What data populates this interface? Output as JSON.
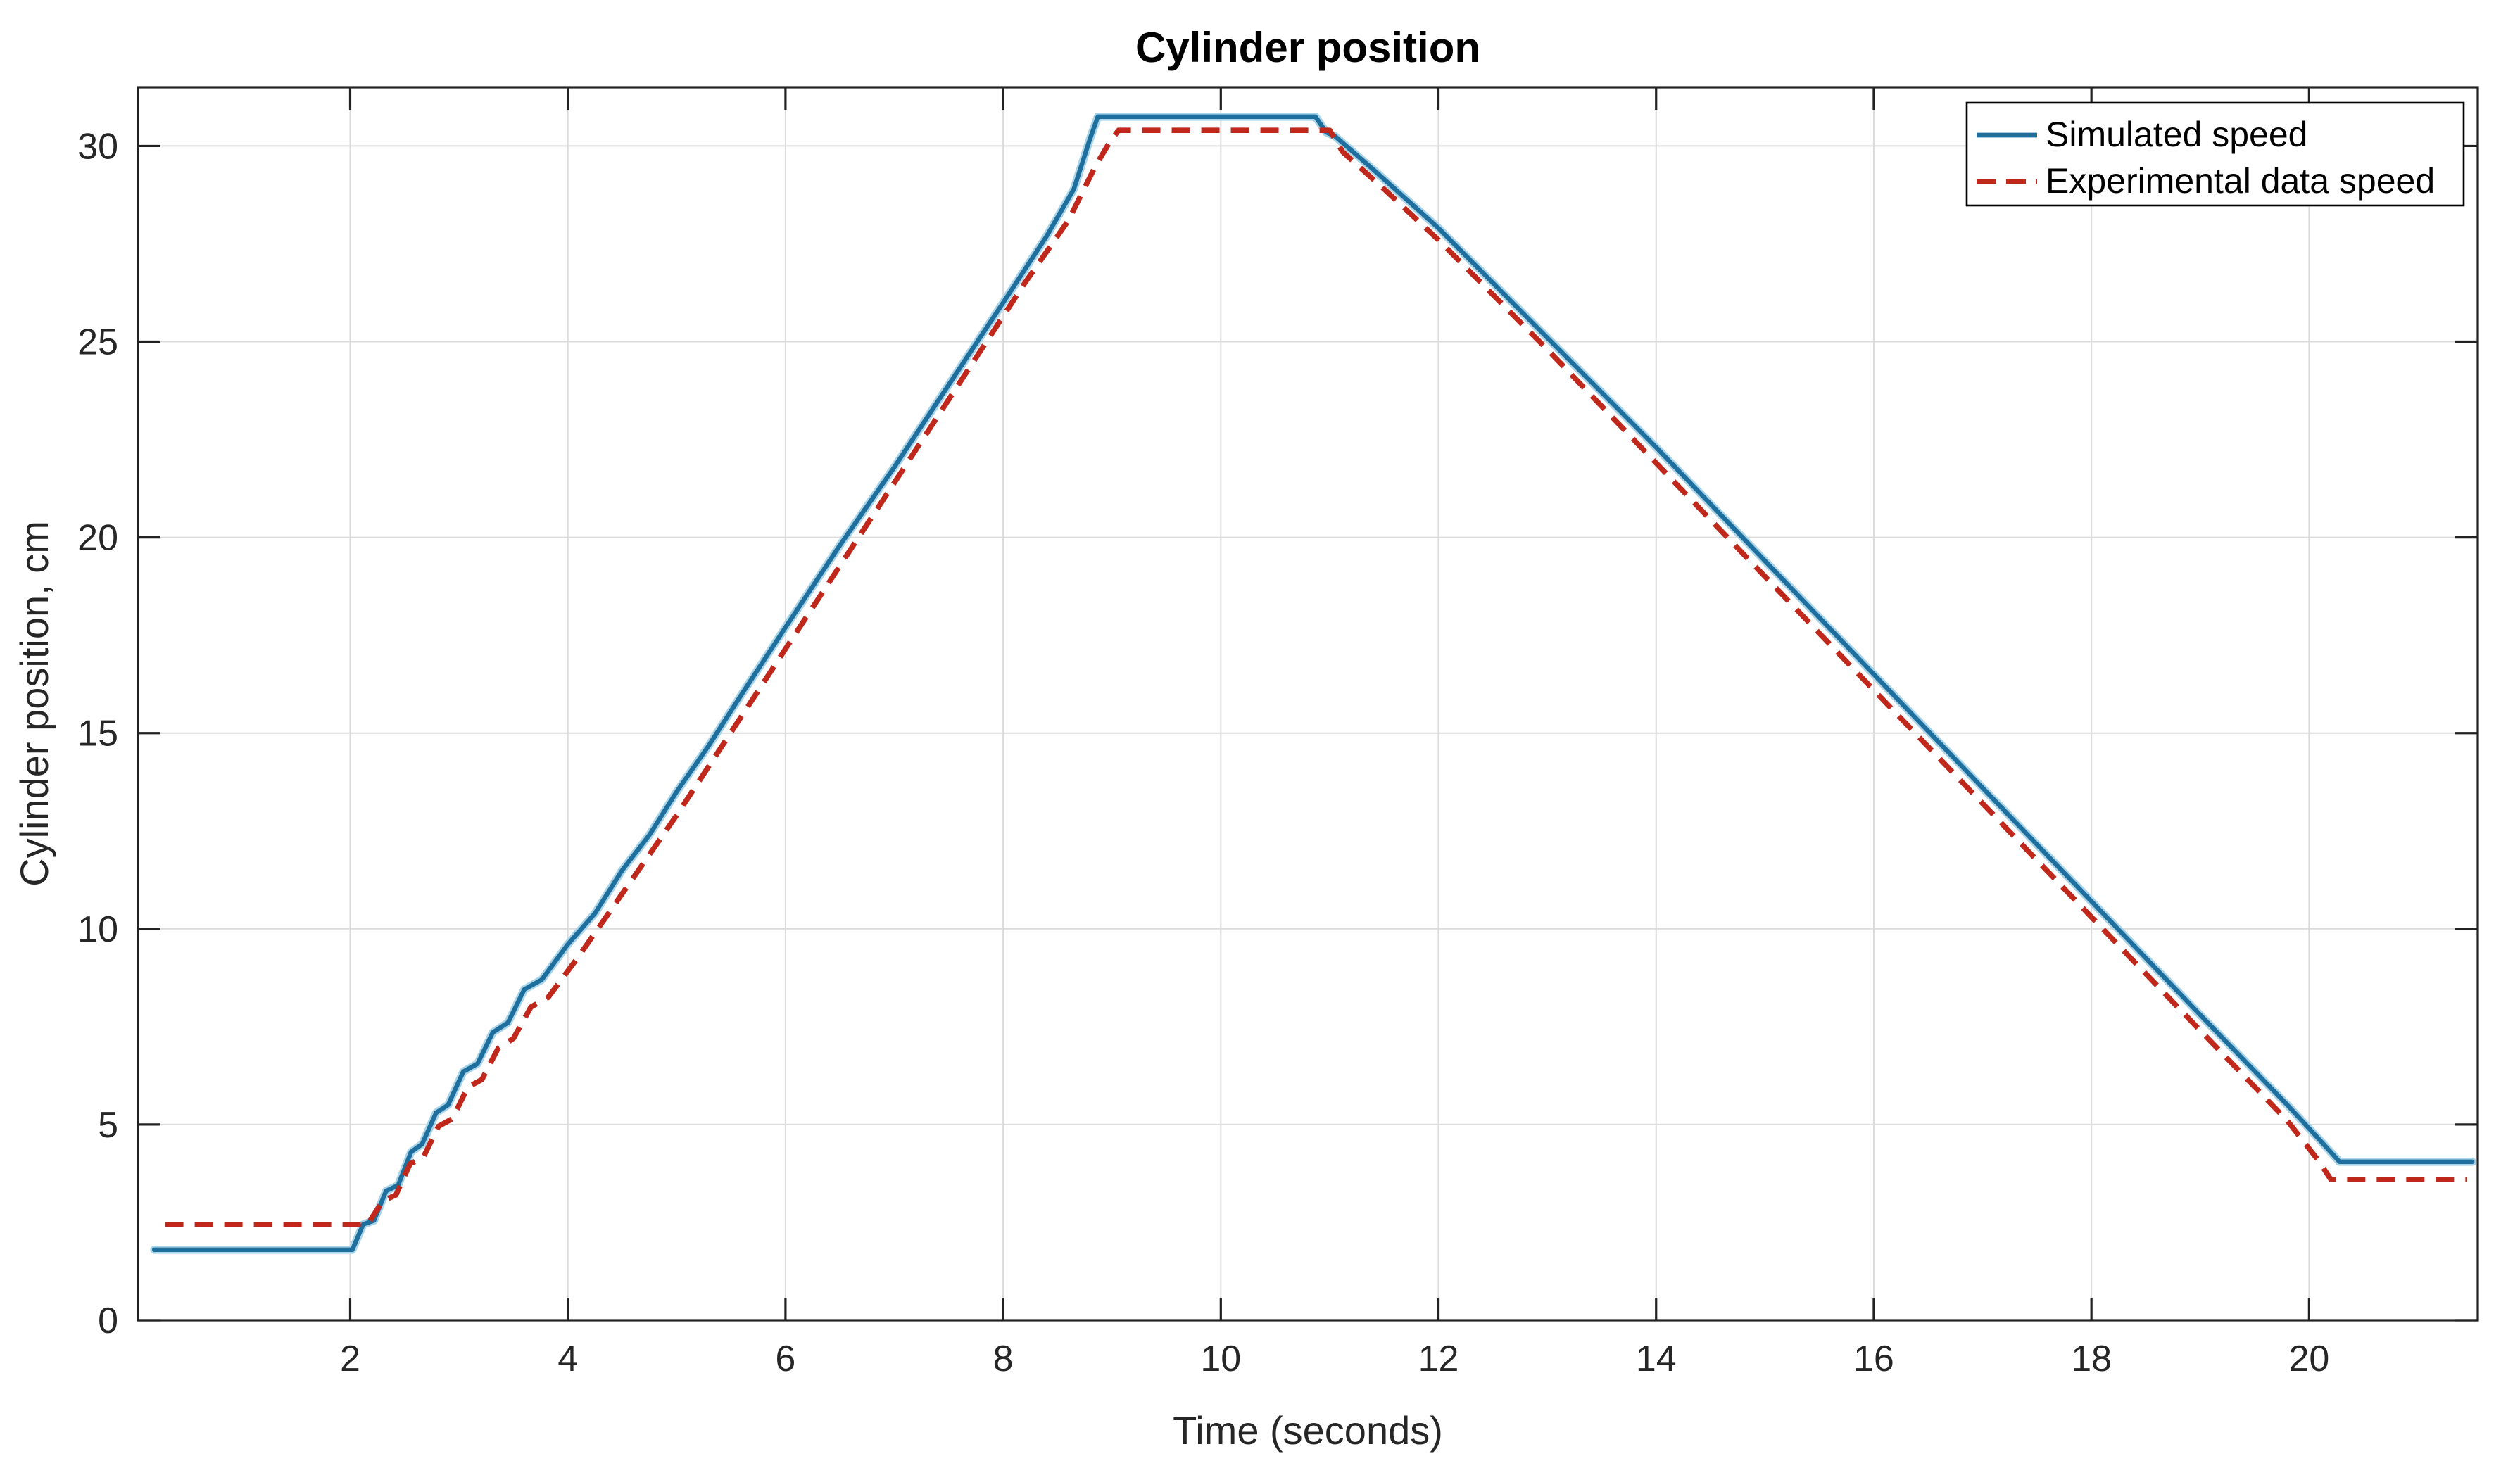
{
  "figure": {
    "background": "#ffffff",
    "grid_color": "#dbdbdb",
    "axis_color": "#222222",
    "tick_label_color": "#262626"
  },
  "chart_data": {
    "type": "line",
    "title": "Cylinder position",
    "xlabel": "Time (seconds)",
    "ylabel": "Cylinder position, cm",
    "xlim": [
      0.05,
      21.55
    ],
    "ylim": [
      0,
      31.5
    ],
    "xticks": [
      2,
      4,
      6,
      8,
      10,
      12,
      14,
      16,
      18,
      20
    ],
    "yticks": [
      0,
      5,
      10,
      15,
      20,
      25,
      30
    ],
    "grid": true,
    "legend_position": "top-right",
    "series": [
      {
        "name": "Simulated speed",
        "color": "#1e6f9e",
        "halo_color": "#a9d4e8",
        "style": "solid",
        "line_width": 3.2,
        "points": [
          [
            0.2,
            1.8
          ],
          [
            2.02,
            1.8
          ],
          [
            2.12,
            2.45
          ],
          [
            2.22,
            2.55
          ],
          [
            2.33,
            3.3
          ],
          [
            2.44,
            3.45
          ],
          [
            2.56,
            4.3
          ],
          [
            2.66,
            4.5
          ],
          [
            2.79,
            5.3
          ],
          [
            2.9,
            5.5
          ],
          [
            3.04,
            6.35
          ],
          [
            3.17,
            6.55
          ],
          [
            3.31,
            7.35
          ],
          [
            3.45,
            7.6
          ],
          [
            3.6,
            8.45
          ],
          [
            3.76,
            8.7
          ],
          [
            4.0,
            9.6
          ],
          [
            4.25,
            10.4
          ],
          [
            4.5,
            11.5
          ],
          [
            4.75,
            12.4
          ],
          [
            5.0,
            13.5
          ],
          [
            5.3,
            14.7
          ],
          [
            5.6,
            16.0
          ],
          [
            6.0,
            17.7
          ],
          [
            6.5,
            19.8
          ],
          [
            7.0,
            21.8
          ],
          [
            7.5,
            23.9
          ],
          [
            8.0,
            26.0
          ],
          [
            8.4,
            27.7
          ],
          [
            8.65,
            28.9
          ],
          [
            8.8,
            30.2
          ],
          [
            8.87,
            30.75
          ],
          [
            10.87,
            30.75
          ],
          [
            10.97,
            30.35
          ],
          [
            11.05,
            30.25
          ],
          [
            11.4,
            29.4
          ],
          [
            12.0,
            27.9
          ],
          [
            13.0,
            25.1
          ],
          [
            14.0,
            22.3
          ],
          [
            15.0,
            19.4
          ],
          [
            16.0,
            16.5
          ],
          [
            17.0,
            13.6
          ],
          [
            18.0,
            10.7
          ],
          [
            19.0,
            7.8
          ],
          [
            19.8,
            5.5
          ],
          [
            20.1,
            4.6
          ],
          [
            20.28,
            4.05
          ],
          [
            21.5,
            4.05
          ]
        ]
      },
      {
        "name": "Experimental data speed",
        "color": "#c1281c",
        "style": "dashed",
        "dash_array": "13 8",
        "legend_dash_array": "14 7",
        "line_width": 3.8,
        "points": [
          [
            0.3,
            2.45
          ],
          [
            2.16,
            2.45
          ],
          [
            2.3,
            3.05
          ],
          [
            2.42,
            3.2
          ],
          [
            2.55,
            4.0
          ],
          [
            2.67,
            4.15
          ],
          [
            2.81,
            4.95
          ],
          [
            2.94,
            5.15
          ],
          [
            3.08,
            5.95
          ],
          [
            3.21,
            6.15
          ],
          [
            3.36,
            6.95
          ],
          [
            3.5,
            7.2
          ],
          [
            3.66,
            8.0
          ],
          [
            3.82,
            8.25
          ],
          [
            4.1,
            9.3
          ],
          [
            4.4,
            10.5
          ],
          [
            4.7,
            11.7
          ],
          [
            5.0,
            12.9
          ],
          [
            5.4,
            14.6
          ],
          [
            5.8,
            16.3
          ],
          [
            6.2,
            18.0
          ],
          [
            6.6,
            19.7
          ],
          [
            7.0,
            21.4
          ],
          [
            7.4,
            23.1
          ],
          [
            7.8,
            24.8
          ],
          [
            8.2,
            26.5
          ],
          [
            8.6,
            28.1
          ],
          [
            8.85,
            29.5
          ],
          [
            8.98,
            30.1
          ],
          [
            9.06,
            30.4
          ],
          [
            11.0,
            30.4
          ],
          [
            11.12,
            29.85
          ],
          [
            11.5,
            28.9
          ],
          [
            12.0,
            27.6
          ],
          [
            13.0,
            24.8
          ],
          [
            14.0,
            21.9
          ],
          [
            15.0,
            19.0
          ],
          [
            16.0,
            16.1
          ],
          [
            17.0,
            13.2
          ],
          [
            18.0,
            10.3
          ],
          [
            19.0,
            7.4
          ],
          [
            19.8,
            5.1
          ],
          [
            20.08,
            4.1
          ],
          [
            20.2,
            3.6
          ],
          [
            21.45,
            3.6
          ]
        ]
      }
    ]
  }
}
